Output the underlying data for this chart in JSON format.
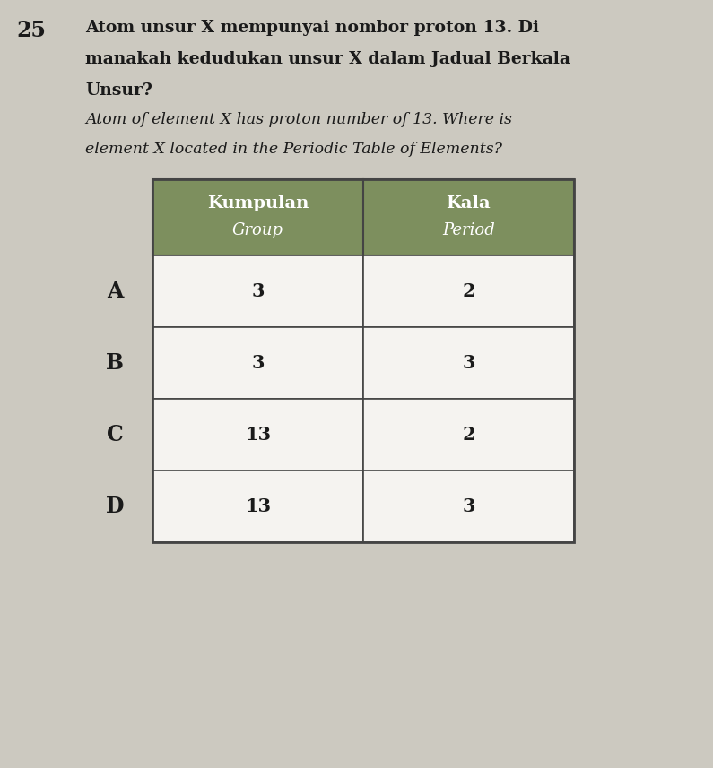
{
  "question_number": "25",
  "question_text_line1": "Atom unsur X mempunyai nombor proton 13. Di",
  "question_text_line2": "manakah kedudukan unsur X dalam Jadual Berkala",
  "question_text_line3": "Unsur?",
  "question_italic_line1": "Atom of element X has proton number of 13. Where is",
  "question_italic_line2": "element X located in the Periodic Table of Elements?",
  "header_col1_line1": "Kumpulan",
  "header_col1_line2": "Group",
  "header_col2_line1": "Kala",
  "header_col2_line2": "Period",
  "options": [
    "A",
    "B",
    "C",
    "D"
  ],
  "col1_values": [
    "3",
    "3",
    "13",
    "13"
  ],
  "col2_values": [
    "2",
    "3",
    "2",
    "3"
  ],
  "header_bg_color": "#7d8f5e",
  "header_text_color": "#ffffff",
  "cell_bg_color": "#f5f3f0",
  "border_color": "#444444",
  "bg_color": "#ccc9c0",
  "text_color": "#1a1a1a",
  "question_fontsize": 13.5,
  "italic_fontsize": 12.5,
  "table_fontsize": 15,
  "header_fontsize": 14,
  "option_fontsize": 17,
  "number_fontsize": 17,
  "fig_width": 7.95,
  "fig_height": 8.57,
  "dpi": 100
}
